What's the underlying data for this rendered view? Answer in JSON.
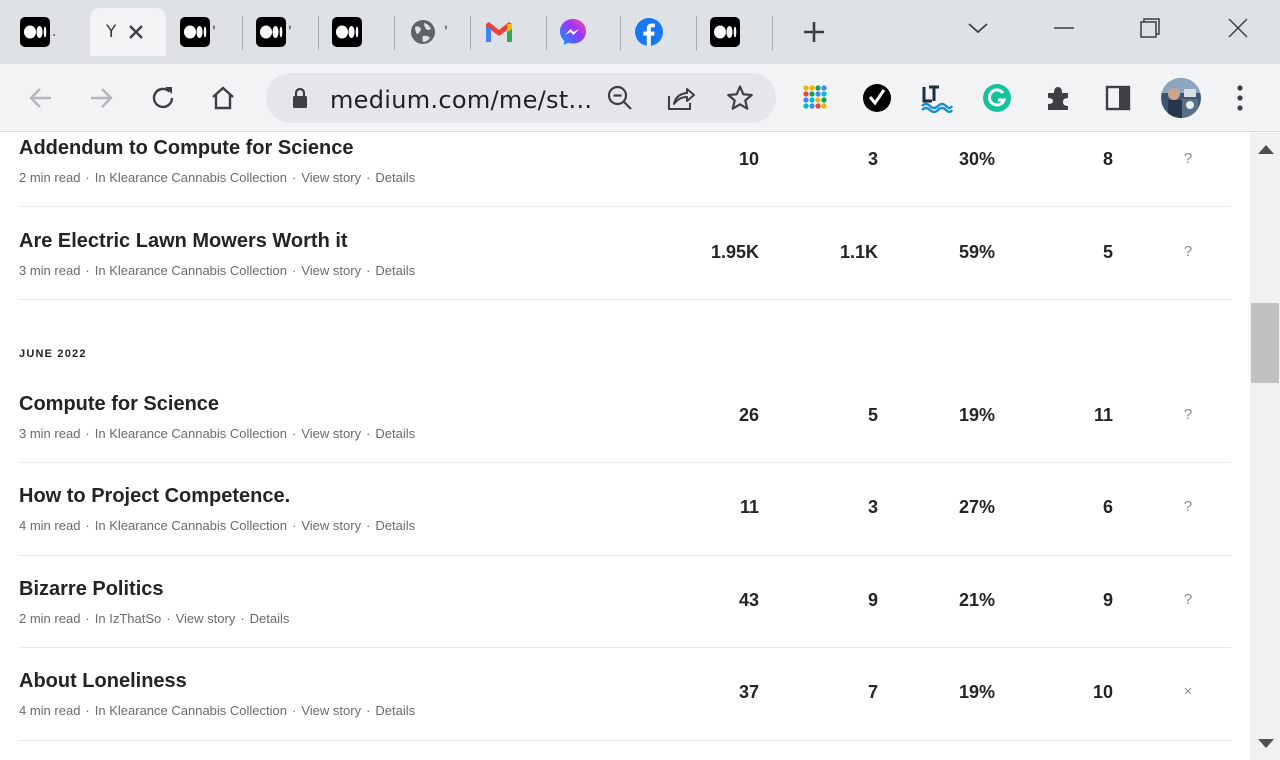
{
  "tabs": [
    {
      "title": ".",
      "icon": "medium-icon"
    },
    {
      "title": "Y",
      "icon": "none"
    },
    {
      "title": "'",
      "icon": "medium-icon"
    },
    {
      "title": "'",
      "icon": "medium-icon"
    },
    {
      "title": "",
      "icon": "medium-icon"
    },
    {
      "title": "'",
      "icon": "globe-icon"
    },
    {
      "title": "",
      "icon": "gmail-icon"
    },
    {
      "title": "",
      "icon": "messenger-icon"
    },
    {
      "title": "",
      "icon": "facebook-icon"
    },
    {
      "title": "",
      "icon": "medium-icon"
    }
  ],
  "address_bar": {
    "url": "medium.com/me/st..."
  },
  "sections": {
    "june": "JUNE 2022"
  },
  "stories": [
    {
      "title": "Addendum to Compute for Science",
      "read": "2 min read",
      "pub": "In Klearance Cannabis Collection",
      "view": "View story",
      "details": "Details",
      "views": "10",
      "reads": "3",
      "ratio": "30%",
      "fans": "8",
      "mark": "?"
    },
    {
      "title": "Are Electric Lawn Mowers Worth it",
      "read": "3 min read",
      "pub": "In Klearance Cannabis Collection",
      "view": "View story",
      "details": "Details",
      "views": "1.95K",
      "reads": "1.1K",
      "ratio": "59%",
      "fans": "5",
      "mark": "?"
    },
    {
      "title": "Compute for Science",
      "read": "3 min read",
      "pub": "In Klearance Cannabis Collection",
      "view": "View story",
      "details": "Details",
      "views": "26",
      "reads": "5",
      "ratio": "19%",
      "fans": "11",
      "mark": "?"
    },
    {
      "title": "How to Project Competence.",
      "read": "4 min read",
      "pub": "In Klearance Cannabis Collection",
      "view": "View story",
      "details": "Details",
      "views": "11",
      "reads": "3",
      "ratio": "27%",
      "fans": "6",
      "mark": "?"
    },
    {
      "title": "Bizarre Politics",
      "read": "2 min read",
      "pub": "In IzThatSo",
      "view": "View story",
      "details": "Details",
      "views": "43",
      "reads": "9",
      "ratio": "21%",
      "fans": "9",
      "mark": "?"
    },
    {
      "title": "About Loneliness",
      "read": "4 min read",
      "pub": "In Klearance Cannabis Collection",
      "view": "View story",
      "details": "Details",
      "views": "37",
      "reads": "7",
      "ratio": "19%",
      "fans": "10",
      "mark": "×"
    }
  ],
  "colors": {
    "tabstrip": "#dee1e6",
    "toolbar": "#f1f3f4",
    "text": "#242424",
    "muted": "#6b6b6b"
  }
}
